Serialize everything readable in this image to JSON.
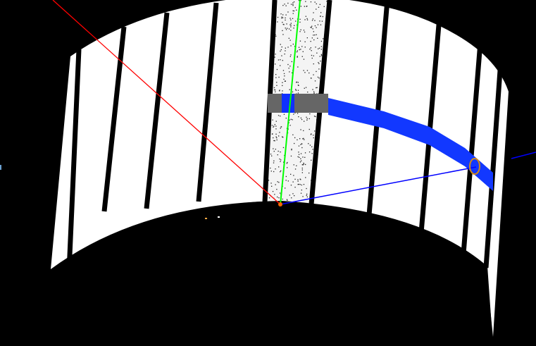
{
  "viewport": {
    "background_color": "#000000",
    "surface_color": "#ffffff",
    "stripe_color": "#000000",
    "axes": {
      "x_axis_color": "#ff0000",
      "y_axis_color": "#00ff00",
      "z_axis_color": "#0000ff",
      "origin_color": "#ff6600"
    },
    "highlight_band_color": "#1030ff",
    "selected_panel_band_color": "#666666",
    "marker_color": "#d08a1a"
  }
}
